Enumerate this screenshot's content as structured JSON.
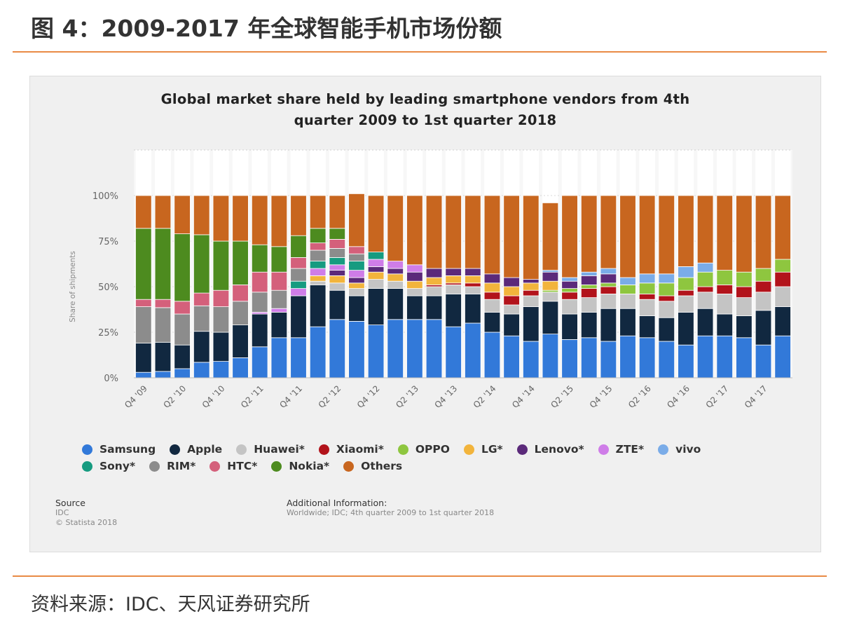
{
  "figure_title": "图 4：2009-2017 年全球智能手机市场份额",
  "footer_source": "资料来源：IDC、天风证券研究所",
  "chart_data": {
    "type": "bar",
    "stacked": true,
    "title_lines": [
      "Global market share held by leading smartphone vendors from 4th",
      "quarter 2009 to 1st quarter 2018"
    ],
    "xlabel": "",
    "ylabel": "Share of shipments",
    "ylim": [
      0,
      100
    ],
    "y_ticks": [
      "0%",
      "25%",
      "50%",
      "75%",
      "100%"
    ],
    "y_tick_values": [
      0,
      25,
      50,
      75,
      100
    ],
    "grid": true,
    "legend_placement": "bottom",
    "categories": [
      "Q4 '09",
      "Q1 '10",
      "Q2 '10",
      "Q3 '10",
      "Q4 '10",
      "Q1 '11",
      "Q2 '11",
      "Q3 '11",
      "Q4 '11",
      "Q1 '12",
      "Q2 '12",
      "Q3 '12",
      "Q4 '12",
      "Q1 '13",
      "Q2 '13",
      "Q3 '13",
      "Q4 '13",
      "Q1 '14",
      "Q2 '14",
      "Q3 '14",
      "Q4 '14",
      "Q1 '15",
      "Q2 '15",
      "Q3 '15",
      "Q4 '15",
      "Q1 '16",
      "Q2 '16",
      "Q3 '16",
      "Q4 '16",
      "Q1 '17",
      "Q2 '17",
      "Q3 '17",
      "Q4 '17",
      "Q1 '18"
    ],
    "x_tick_labels": [
      "Q4 '09",
      "Q2 '10",
      "Q4 '10",
      "Q2 '11",
      "Q4 '11",
      "Q2 '12",
      "Q4 '12",
      "Q2 '13",
      "Q4 '13",
      "Q2 '14",
      "Q4 '14",
      "Q2 '15",
      "Q4 '15",
      "Q2 '16",
      "Q4 '16",
      "Q2 '17",
      "Q4 '17"
    ],
    "series": [
      {
        "name": "Samsung",
        "color": "#3279d9",
        "values": [
          3,
          3.5,
          5,
          8.5,
          9,
          11,
          17,
          22,
          22,
          28,
          32,
          31,
          29,
          32,
          32,
          32,
          28,
          30,
          25,
          23,
          20,
          24,
          21,
          22,
          20,
          23,
          22,
          20,
          18,
          23,
          23,
          22,
          18,
          23
        ]
      },
      {
        "name": "Apple",
        "color": "#112840",
        "values": [
          16,
          16,
          13,
          17,
          16,
          18,
          18,
          14,
          23,
          23,
          16,
          14,
          20,
          17,
          13,
          13,
          18,
          16,
          11,
          12,
          19,
          18,
          14,
          14,
          18,
          15,
          12,
          13,
          18,
          15,
          12,
          12,
          19,
          16
        ]
      },
      {
        "name": "Huawei*",
        "color": "#c4c4c4",
        "values": [
          0,
          0,
          0,
          0,
          0,
          0,
          0,
          0,
          0,
          2,
          4,
          4,
          5,
          4,
          4,
          5,
          5,
          4,
          7,
          5,
          6,
          5,
          8,
          8,
          8,
          8,
          9,
          9,
          9,
          9,
          11,
          10,
          10,
          11
        ]
      },
      {
        "name": "Xiaomi*",
        "color": "#b2131b",
        "values": [
          0,
          0,
          0,
          0,
          0,
          0,
          0,
          0,
          0,
          0,
          0,
          0,
          0,
          0,
          0,
          1,
          1,
          2,
          4,
          5,
          3,
          0,
          4,
          5,
          4,
          0,
          3,
          3,
          3,
          3,
          5,
          6,
          6,
          8
        ]
      },
      {
        "name": "OPPO",
        "color": "#8ec63f",
        "values": [
          0,
          0,
          0,
          0,
          0,
          0,
          0,
          0,
          0,
          0,
          0,
          0,
          0,
          0,
          0,
          0,
          0,
          0,
          0,
          0,
          0,
          1,
          2,
          2,
          2,
          5,
          6,
          7,
          7,
          8,
          8,
          8,
          7,
          7
        ]
      },
      {
        "name": "LG*",
        "color": "#f2b43c",
        "values": [
          0,
          0,
          0,
          0,
          0,
          0,
          0,
          0,
          0,
          3,
          4,
          3,
          4,
          4,
          4,
          4,
          4,
          4,
          5,
          5,
          4,
          5,
          0,
          0,
          0,
          0,
          0,
          0,
          0,
          0,
          0,
          0,
          0,
          0
        ]
      },
      {
        "name": "Lenovo*",
        "color": "#5b2a7a",
        "values": [
          0,
          0,
          0,
          0,
          0,
          0,
          0,
          0,
          0,
          0,
          3,
          3,
          3,
          3,
          5,
          5,
          4,
          4,
          5,
          5,
          2,
          5,
          4,
          5,
          5,
          0,
          0,
          0,
          0,
          0,
          0,
          0,
          0,
          0
        ]
      },
      {
        "name": "ZTE*",
        "color": "#cf7de8",
        "values": [
          0,
          0,
          0,
          0,
          0,
          0,
          1,
          2,
          4,
          4,
          3,
          4,
          4,
          4,
          4,
          0,
          0,
          0,
          0,
          0,
          0,
          0,
          0,
          0,
          0,
          0,
          0,
          0,
          0,
          0,
          0,
          0,
          0,
          0
        ]
      },
      {
        "name": "vivo",
        "color": "#7aace8",
        "values": [
          0,
          0,
          0,
          0,
          0,
          0,
          0,
          0,
          0,
          0,
          0,
          0,
          0,
          0,
          0,
          0,
          0,
          0,
          0,
          0,
          0,
          1,
          2,
          2,
          3,
          4,
          5,
          5,
          6,
          5,
          0,
          0,
          0,
          0
        ]
      },
      {
        "name": "Sony*",
        "color": "#169b80",
        "values": [
          0,
          0,
          0,
          0,
          0,
          0,
          0,
          0,
          4,
          4,
          4,
          5,
          4,
          0,
          0,
          0,
          0,
          0,
          0,
          0,
          0,
          0,
          0,
          0,
          0,
          0,
          0,
          0,
          0,
          0,
          0,
          0,
          0,
          0
        ]
      },
      {
        "name": "RIM*",
        "color": "#8c8c8c",
        "values": [
          20,
          19,
          17,
          14,
          14,
          13,
          11,
          10,
          7,
          6,
          5,
          4,
          0,
          0,
          0,
          0,
          0,
          0,
          0,
          0,
          0,
          0,
          0,
          0,
          0,
          0,
          0,
          0,
          0,
          0,
          0,
          0,
          0,
          0
        ]
      },
      {
        "name": "HTC*",
        "color": "#d4607b",
        "values": [
          4,
          4.5,
          7,
          7,
          9,
          9,
          11,
          10,
          6,
          4,
          5,
          4,
          0,
          0,
          0,
          0,
          0,
          0,
          0,
          0,
          0,
          0,
          0,
          0,
          0,
          0,
          0,
          0,
          0,
          0,
          0,
          0,
          0,
          0
        ]
      },
      {
        "name": "Nokia*",
        "color": "#4d8b1f",
        "values": [
          39,
          39,
          37,
          32,
          27,
          24,
          15,
          14,
          12,
          8,
          6,
          0,
          0,
          0,
          0,
          0,
          0,
          0,
          0,
          0,
          0,
          0,
          0,
          0,
          0,
          0,
          0,
          0,
          0,
          0,
          0,
          0,
          0,
          0
        ]
      },
      {
        "name": "Others",
        "color": "#c8661f",
        "values": [
          18,
          18,
          21,
          21.5,
          25,
          25,
          27,
          28,
          22,
          18,
          18,
          29,
          31,
          36,
          38,
          40,
          40,
          40,
          43,
          45,
          46,
          37,
          45,
          42,
          40,
          45,
          43,
          43,
          39,
          37,
          41,
          42,
          40,
          35
        ]
      }
    ],
    "source_heading": "Source",
    "source_lines": [
      "IDC",
      "© Statista 2018"
    ],
    "info_heading": "Additional Information:",
    "info_text": "Worldwide; IDC; 4th quarter 2009 to 1st quarter 2018"
  }
}
